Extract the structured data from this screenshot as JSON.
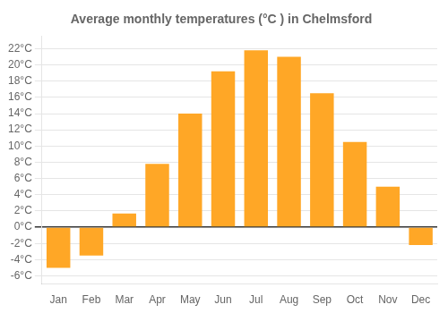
{
  "chart_data": {
    "type": "bar",
    "title": "Average monthly temperatures (°C ) in Chelmsford",
    "categories": [
      "Jan",
      "Feb",
      "Mar",
      "Apr",
      "May",
      "Jun",
      "Jul",
      "Aug",
      "Sep",
      "Oct",
      "Nov",
      "Dec"
    ],
    "values": [
      -5.0,
      -3.5,
      1.7,
      7.8,
      14.0,
      19.2,
      21.8,
      21.0,
      16.5,
      10.5,
      5.0,
      -2.2
    ],
    "color": "#FFA726",
    "ylim": [
      -7,
      23.5
    ],
    "yticks": [
      {
        "value": -6,
        "label": "-6°C"
      },
      {
        "value": -4,
        "label": "-4°C"
      },
      {
        "value": -2,
        "label": "-2°C"
      },
      {
        "value": 0,
        "label": "0°C"
      },
      {
        "value": 2,
        "label": "2°C"
      },
      {
        "value": 4,
        "label": "4°C"
      },
      {
        "value": 6,
        "label": "6°C"
      },
      {
        "value": 8,
        "label": "8°C"
      },
      {
        "value": 10,
        "label": "10°C"
      },
      {
        "value": 12,
        "label": "12°C"
      },
      {
        "value": 14,
        "label": "14°C"
      },
      {
        "value": 16,
        "label": "16°C"
      },
      {
        "value": 18,
        "label": "18°C"
      },
      {
        "value": 20,
        "label": "20°C"
      },
      {
        "value": 22,
        "label": "22°C"
      }
    ],
    "grid": true
  }
}
